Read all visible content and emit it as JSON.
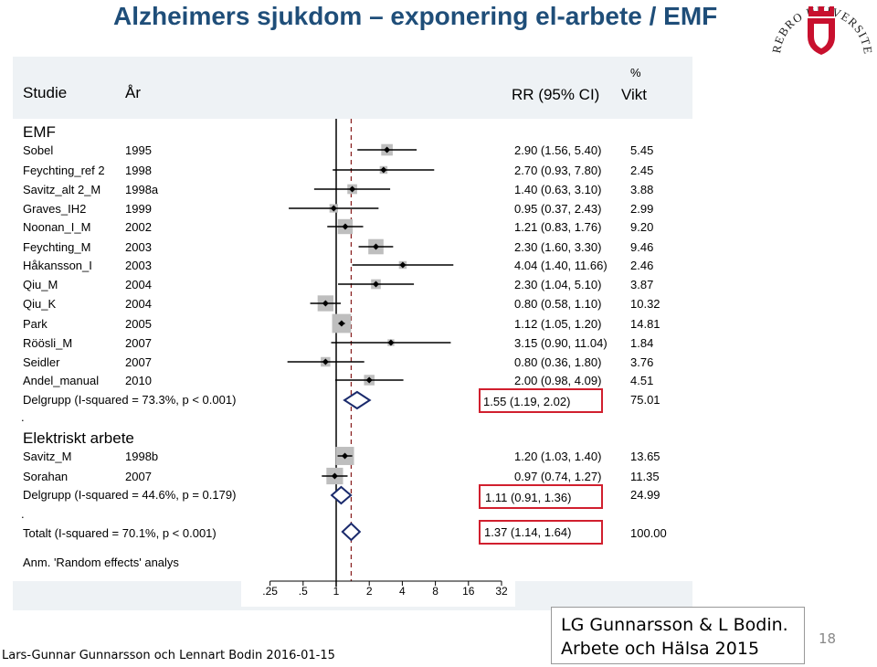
{
  "title": "Alzheimers sjukdom – exponering el-arbete / EMF",
  "chart_data": {
    "type": "forest",
    "columns": {
      "study": "Studie",
      "year": "År",
      "rr": "RR (95% CI)",
      "weight_pct": "%",
      "weight": "Vikt"
    },
    "x_ticks": [
      ".25",
      ".5",
      "1",
      "2",
      "4",
      "8",
      "16",
      "32"
    ],
    "x_tick_values": [
      0.25,
      0.5,
      1,
      2,
      4,
      8,
      16,
      32
    ],
    "reference_line": 1,
    "groups": [
      {
        "name": "EMF",
        "studies": [
          {
            "study": "Sobel",
            "year": "1995",
            "rr": 2.9,
            "lo": 1.56,
            "hi": 5.4,
            "ci_text": "2.90 (1.56, 5.40)",
            "weight": "5.45"
          },
          {
            "study": "Feychting_ref 2",
            "year": "1998",
            "rr": 2.7,
            "lo": 0.93,
            "hi": 7.8,
            "ci_text": "2.70 (0.93, 7.80)",
            "weight": "2.45"
          },
          {
            "study": "Savitz_alt 2_M",
            "year": "1998a",
            "rr": 1.4,
            "lo": 0.63,
            "hi": 3.1,
            "ci_text": "1.40 (0.63, 3.10)",
            "weight": "3.88"
          },
          {
            "study": "Graves_IH2",
            "year": "1999",
            "rr": 0.95,
            "lo": 0.37,
            "hi": 2.43,
            "ci_text": "0.95 (0.37, 2.43)",
            "weight": "2.99"
          },
          {
            "study": "Noonan_I_M",
            "year": "2002",
            "rr": 1.21,
            "lo": 0.83,
            "hi": 1.76,
            "ci_text": "1.21 (0.83, 1.76)",
            "weight": "9.20"
          },
          {
            "study": "Feychting_M",
            "year": "2003",
            "rr": 2.3,
            "lo": 1.6,
            "hi": 3.3,
            "ci_text": "2.30 (1.60, 3.30)",
            "weight": "9.46"
          },
          {
            "study": "Håkansson_I",
            "year": "2003",
            "rr": 4.04,
            "lo": 1.4,
            "hi": 11.66,
            "ci_text": "4.04 (1.40, 11.66)",
            "weight": "2.46"
          },
          {
            "study": "Qiu_M",
            "year": "2004",
            "rr": 2.3,
            "lo": 1.04,
            "hi": 5.1,
            "ci_text": "2.30 (1.04, 5.10)",
            "weight": "3.87"
          },
          {
            "study": "Qiu_K",
            "year": "2004",
            "rr": 0.8,
            "lo": 0.58,
            "hi": 1.1,
            "ci_text": "0.80 (0.58, 1.10)",
            "weight": "10.32"
          },
          {
            "study": "Park",
            "year": "2005",
            "rr": 1.12,
            "lo": 1.05,
            "hi": 1.2,
            "ci_text": "1.12 (1.05, 1.20)",
            "weight": "14.81"
          },
          {
            "study": "Röösli_M",
            "year": "2007",
            "rr": 3.15,
            "lo": 0.9,
            "hi": 11.04,
            "ci_text": "3.15 (0.90, 11.04)",
            "weight": "1.84"
          },
          {
            "study": "Seidler",
            "year": "2007",
            "rr": 0.8,
            "lo": 0.36,
            "hi": 1.8,
            "ci_text": "0.80 (0.36, 1.80)",
            "weight": "3.76"
          },
          {
            "study": "Andel_manual",
            "year": "2010",
            "rr": 2.0,
            "lo": 0.98,
            "hi": 4.09,
            "ci_text": "2.00 (0.98, 4.09)",
            "weight": "4.51"
          }
        ],
        "subtotal": {
          "label": "Delgrupp (I-squared = 73.3%, p < 0.001)",
          "rr": 1.55,
          "lo": 1.19,
          "hi": 2.02,
          "ci_text": "1.55 (1.19, 2.02)",
          "weight": "75.01"
        }
      },
      {
        "name": "Elektriskt arbete",
        "studies": [
          {
            "study": "Savitz_M",
            "year": "1998b",
            "rr": 1.2,
            "lo": 1.03,
            "hi": 1.4,
            "ci_text": "1.20 (1.03, 1.40)",
            "weight": "13.65"
          },
          {
            "study": "Sorahan",
            "year": "2007",
            "rr": 0.97,
            "lo": 0.74,
            "hi": 1.27,
            "ci_text": "0.97 (0.74, 1.27)",
            "weight": "11.35"
          }
        ],
        "subtotal": {
          "label": "Delgrupp (I-squared = 44.6%, p = 0.179)",
          "rr": 1.11,
          "lo": 0.91,
          "hi": 1.36,
          "ci_text": "1.11 (0.91, 1.36)",
          "weight": "24.99"
        }
      }
    ],
    "overall": {
      "label": "Totalt (I-squared = 70.1%, p < 0.001)",
      "rr": 1.37,
      "lo": 1.14,
      "hi": 1.64,
      "ci_text": "1.37 (1.14, 1.64)",
      "weight": "100.00"
    },
    "note": "Anm. 'Random effects' analys",
    "colors": {
      "marker_box": "#BEBEBE",
      "diamond": "#1A2A6C",
      "highlight": "#D11F2E",
      "reference_line": "#000000",
      "overall_line": "#8B2323",
      "title": "#1F4E79"
    }
  },
  "logo": {
    "text": "ÖREBRO UNIVERSITET",
    "shield_color": "#C8102E"
  },
  "citation": {
    "line1": "LG Gunnarsson & L Bodin.",
    "line2": "Arbete och Hälsa 2015"
  },
  "footer": "Lars-Gunnar Gunnarsson och Lennart Bodin 2016-01-15",
  "page_number": "18"
}
